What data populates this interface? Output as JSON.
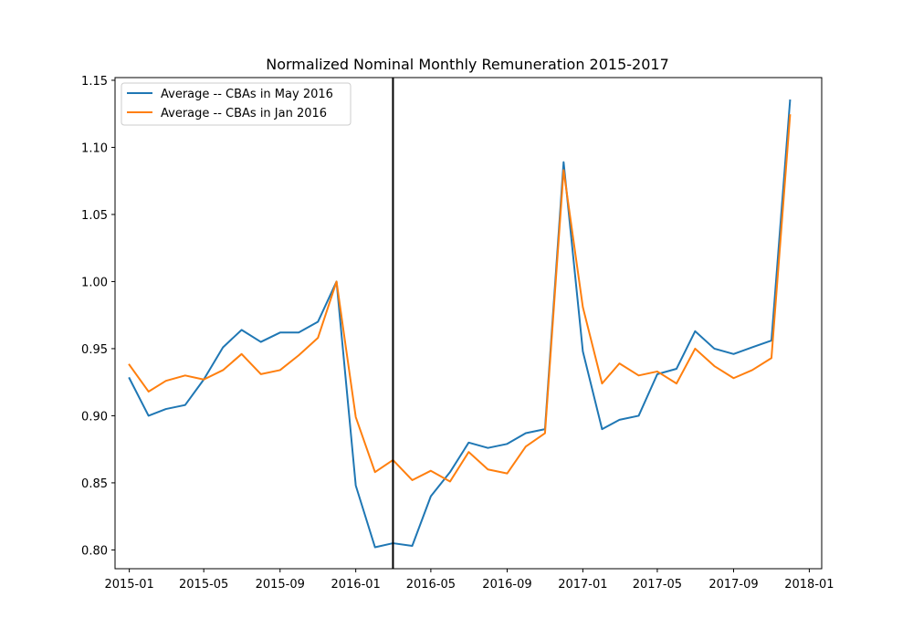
{
  "chart_data": {
    "type": "line",
    "title": "Normalized Nominal Monthly Remuneration 2015-2017",
    "xlabel": "",
    "ylabel": "",
    "x_ticks": [
      "2015-01",
      "2015-05",
      "2015-09",
      "2016-01",
      "2016-05",
      "2016-09",
      "2017-01",
      "2017-05",
      "2017-09",
      "2018-01"
    ],
    "y_ticks": [
      "0.80",
      "0.85",
      "0.90",
      "0.95",
      "1.00",
      "1.05",
      "1.10",
      "1.15"
    ],
    "xlim": [
      "2014-12-09",
      "2018-01-21"
    ],
    "ylim": [
      0.786,
      1.152
    ],
    "vline": "2016-03-01",
    "grid": false,
    "legend_placement": "top-left",
    "x": [
      "2015-01",
      "2015-02",
      "2015-03",
      "2015-04",
      "2015-05",
      "2015-06",
      "2015-07",
      "2015-08",
      "2015-09",
      "2015-10",
      "2015-11",
      "2015-12",
      "2016-01",
      "2016-02",
      "2016-03",
      "2016-04",
      "2016-05",
      "2016-06",
      "2016-07",
      "2016-08",
      "2016-09",
      "2016-10",
      "2016-11",
      "2016-12",
      "2017-01",
      "2017-02",
      "2017-03",
      "2017-04",
      "2017-05",
      "2017-06",
      "2017-07",
      "2017-08",
      "2017-09",
      "2017-10",
      "2017-11",
      "2017-12"
    ],
    "series": [
      {
        "name": "Average -- CBAs in May 2016",
        "color": "#1f77b4",
        "values": [
          0.928,
          0.9,
          0.905,
          0.908,
          0.927,
          0.951,
          0.964,
          0.955,
          0.962,
          0.962,
          0.97,
          1.0,
          0.848,
          0.802,
          0.805,
          0.803,
          0.84,
          0.858,
          0.88,
          0.876,
          0.879,
          0.887,
          0.89,
          1.089,
          0.948,
          0.89,
          0.897,
          0.9,
          0.931,
          0.935,
          0.963,
          0.95,
          0.946,
          0.951,
          0.956,
          1.135
        ]
      },
      {
        "name": "Average -- CBAs in Jan 2016",
        "color": "#ff7f0e",
        "values": [
          0.938,
          0.918,
          0.926,
          0.93,
          0.927,
          0.934,
          0.946,
          0.931,
          0.934,
          0.945,
          0.958,
          1.0,
          0.899,
          0.858,
          0.867,
          0.852,
          0.859,
          0.851,
          0.873,
          0.86,
          0.857,
          0.877,
          0.887,
          1.083,
          0.981,
          0.924,
          0.939,
          0.93,
          0.933,
          0.924,
          0.95,
          0.937,
          0.928,
          0.934,
          0.943,
          1.124
        ]
      }
    ]
  }
}
